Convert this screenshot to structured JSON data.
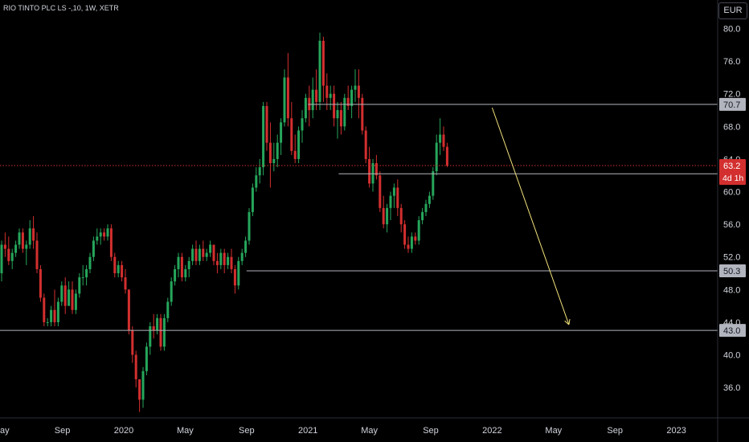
{
  "title": "RIO TINTO PLC LS -,10, 1W, XETR",
  "currency_button": "EUR",
  "colors": {
    "background": "#000000",
    "up": "#26a65b",
    "down": "#d32f2f",
    "level_line": "#b2b5be",
    "current_price_line": "#d32f2f",
    "projection_arrow": "#f2e27a",
    "axis_text": "#d1d4dc"
  },
  "chart_data": {
    "type": "candlestick",
    "ylim": [
      31.5,
      83.5
    ],
    "y_ticks": [
      "36.0",
      "40.0",
      "44.0",
      "48.0",
      "52.0",
      "56.0",
      "60.0",
      "64.0",
      "68.0",
      "72.0",
      "76.0",
      "80.0"
    ],
    "x_ticks": [
      "May",
      "Sep",
      "2020",
      "May",
      "Sep",
      "2021",
      "May",
      "Sep",
      "2022",
      "May",
      "Sep",
      "2023"
    ],
    "price_levels": [
      {
        "value": 70.7,
        "label": "70.7",
        "start_date": "2021-01"
      },
      {
        "value": 62.2,
        "label": "62.2",
        "start_date": "2021-03"
      },
      {
        "value": 50.3,
        "label": "50.3",
        "start_date": "2020-09"
      },
      {
        "value": 43.0,
        "label": "43.0",
        "start_date": "2019-04"
      }
    ],
    "current_price": {
      "value": 63.2,
      "label": "63.2",
      "countdown": "4d 1h"
    },
    "projection": {
      "from": {
        "date": "2022-01",
        "value": 70.3
      },
      "to": {
        "date": "2022-06",
        "value": 43.7
      }
    },
    "candles": [
      [
        50,
        54,
        49,
        53.5
      ],
      [
        53.5,
        55,
        52,
        53
      ],
      [
        53,
        54.5,
        51,
        51.5
      ],
      [
        51.5,
        53,
        50.5,
        52.5
      ],
      [
        52.5,
        54,
        52,
        53.5
      ],
      [
        53.5,
        55.5,
        53,
        55
      ],
      [
        55,
        55.5,
        52.5,
        53
      ],
      [
        53,
        54,
        51,
        53.5
      ],
      [
        53.5,
        56.5,
        53,
        55.5
      ],
      [
        55.5,
        57,
        53,
        54
      ],
      [
        54,
        55,
        50,
        50.5
      ],
      [
        50.5,
        51,
        46.5,
        47
      ],
      [
        47,
        47.5,
        43.5,
        44
      ],
      [
        44,
        44.5,
        43.5,
        44
      ],
      [
        44,
        46,
        43.5,
        45.5
      ],
      [
        45.5,
        48,
        43.5,
        44
      ],
      [
        44,
        47,
        43.5,
        46.5
      ],
      [
        46.5,
        49,
        46,
        48.5
      ],
      [
        48.5,
        49.5,
        45,
        46
      ],
      [
        46,
        49,
        46,
        48
      ],
      [
        48,
        49,
        45,
        45.5
      ],
      [
        45.5,
        48,
        45,
        47.5
      ],
      [
        47.5,
        50,
        47,
        49.5
      ],
      [
        49.5,
        51,
        48.5,
        49.5
      ],
      [
        49.5,
        51,
        48.5,
        50.5
      ],
      [
        50.5,
        52.5,
        50,
        52
      ],
      [
        52,
        54.5,
        51.5,
        54
      ],
      [
        54,
        55.5,
        53.5,
        54.5
      ],
      [
        54.5,
        55.5,
        53.5,
        55
      ],
      [
        55,
        55.5,
        54,
        54.5
      ],
      [
        54.5,
        56,
        54,
        55.5
      ],
      [
        55.5,
        56,
        51.5,
        52
      ],
      [
        52,
        52.5,
        49.5,
        50
      ],
      [
        50,
        51.5,
        49.5,
        51
      ],
      [
        51,
        51.5,
        49,
        49.5
      ],
      [
        49.5,
        50.5,
        47.5,
        48
      ],
      [
        48,
        48,
        42.5,
        43
      ],
      [
        43,
        43.5,
        39,
        40
      ],
      [
        40,
        40.5,
        36,
        37
      ],
      [
        37,
        37,
        33,
        34.5
      ],
      [
        34.5,
        38.5,
        33.5,
        38
      ],
      [
        38,
        41.5,
        37.5,
        41
      ],
      [
        41,
        44,
        40,
        43.5
      ],
      [
        43.5,
        45,
        42,
        43
      ],
      [
        43,
        45,
        42.5,
        44.5
      ],
      [
        44.5,
        45,
        40.5,
        41
      ],
      [
        41,
        45,
        40.5,
        44.5
      ],
      [
        44.5,
        47,
        44,
        46.5
      ],
      [
        46.5,
        49.5,
        46,
        49
      ],
      [
        49,
        51,
        48.5,
        50.5
      ],
      [
        50.5,
        52.5,
        49.5,
        52
      ],
      [
        52,
        52.5,
        49,
        49.5
      ],
      [
        49.5,
        51,
        49,
        50.5
      ],
      [
        50.5,
        52,
        49.5,
        51.5
      ],
      [
        51.5,
        53.5,
        51,
        53
      ],
      [
        53,
        54,
        51,
        51.5
      ],
      [
        51.5,
        53.5,
        51,
        53
      ],
      [
        53,
        54,
        51.5,
        52
      ],
      [
        52,
        53,
        51.5,
        52.5
      ],
      [
        52.5,
        54,
        52,
        53.5
      ],
      [
        53.5,
        53.5,
        51,
        51.5
      ],
      [
        51.5,
        52.5,
        50,
        51
      ],
      [
        51,
        53,
        50.5,
        52.5
      ],
      [
        52.5,
        53,
        50,
        51
      ],
      [
        51,
        52.5,
        50.5,
        52
      ],
      [
        52,
        53,
        50,
        50.5
      ],
      [
        50.5,
        51,
        47.5,
        48.5
      ],
      [
        48.5,
        52,
        48,
        51.5
      ],
      [
        51.5,
        53,
        51,
        52.5
      ],
      [
        52.5,
        54.5,
        52,
        54
      ],
      [
        54,
        58,
        53.5,
        57.5
      ],
      [
        57.5,
        61,
        57,
        60.5
      ],
      [
        60.5,
        63,
        60,
        62
      ],
      [
        62,
        64,
        61,
        63
      ],
      [
        63,
        71,
        62,
        70.5
      ],
      [
        70.5,
        71,
        65,
        66
      ],
      [
        66,
        68.5,
        60.5,
        63.5
      ],
      [
        63.5,
        66,
        62.5,
        64
      ],
      [
        64,
        67,
        63,
        66
      ],
      [
        66,
        69,
        64.5,
        68.5
      ],
      [
        68.5,
        75,
        68,
        74
      ],
      [
        74,
        77,
        68,
        69
      ],
      [
        69,
        71,
        64.5,
        65
      ],
      [
        65,
        67,
        63.5,
        64
      ],
      [
        64,
        68,
        63.5,
        67.5
      ],
      [
        67.5,
        70,
        66,
        69
      ],
      [
        69,
        72,
        68.5,
        71.5
      ],
      [
        71.5,
        73,
        68,
        70
      ],
      [
        70,
        74,
        69,
        72.5
      ],
      [
        72.5,
        75,
        70,
        71
      ],
      [
        71,
        79.5,
        70,
        78.5
      ],
      [
        78.5,
        79,
        71,
        73
      ],
      [
        73,
        74.5,
        70,
        71.5
      ],
      [
        71.5,
        73,
        70,
        72
      ],
      [
        72,
        73,
        68,
        69
      ],
      [
        69,
        71,
        66.5,
        70
      ],
      [
        70,
        71,
        67,
        68
      ],
      [
        68,
        72,
        67.5,
        71.5
      ],
      [
        71.5,
        73,
        70,
        70.5
      ],
      [
        70.5,
        73,
        69,
        72.5
      ],
      [
        72.5,
        75,
        71,
        73
      ],
      [
        73,
        75,
        69,
        71.5
      ],
      [
        71.5,
        72,
        67,
        67.5
      ],
      [
        67.5,
        68,
        63.5,
        64
      ],
      [
        64,
        65.5,
        60.5,
        61
      ],
      [
        61,
        64,
        60,
        63.5
      ],
      [
        63.5,
        64.5,
        61.5,
        62
      ],
      [
        62,
        62.5,
        57.5,
        58
      ],
      [
        58,
        59.5,
        55.5,
        56
      ],
      [
        56,
        58.5,
        55,
        58
      ],
      [
        58,
        60,
        56.5,
        59.5
      ],
      [
        59.5,
        61,
        58,
        60.5
      ],
      [
        60.5,
        61.5,
        57,
        58
      ],
      [
        58,
        58.5,
        55,
        56
      ],
      [
        56,
        56.5,
        53,
        53.5
      ],
      [
        53.5,
        54.5,
        52.5,
        53
      ],
      [
        53,
        55,
        52.5,
        54.5
      ],
      [
        54.5,
        55,
        53.5,
        54
      ],
      [
        54,
        57,
        53.5,
        56.5
      ],
      [
        56.5,
        58,
        56,
        57.5
      ],
      [
        57.5,
        59,
        57,
        58.5
      ],
      [
        58.5,
        60,
        58,
        59.5
      ],
      [
        59.5,
        63,
        59,
        62.5
      ],
      [
        62.5,
        67,
        62,
        66
      ],
      [
        66,
        69,
        64.5,
        67
      ],
      [
        67,
        68,
        65,
        65.5
      ],
      [
        65.5,
        66,
        63,
        63.2
      ]
    ]
  }
}
